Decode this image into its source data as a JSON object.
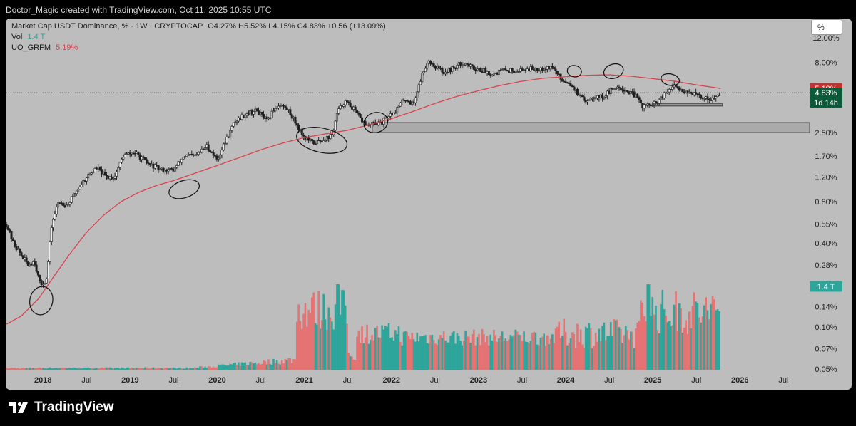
{
  "header": {
    "attribution": "Doctor_Magic created with TradingView.com, Oct 11, 2025 10:55 UTC"
  },
  "legend": {
    "title": "Market Cap USDT Dominance, % · 1W · CRYPTOCAP",
    "ohlc": "O4.27%  H5.52%  L4.15%  C4.83%  +0.56 (+13.09%)",
    "vol_label": "Vol",
    "vol_value": "1.4 T",
    "indicator_label": "UO_GRFM",
    "indicator_value": "5.19%"
  },
  "scale_button": "%",
  "badges": {
    "indicator": "5.19%",
    "price": "4.83%",
    "countdown": "1d 14h",
    "volume": "1.4 T"
  },
  "brand": {
    "name": "TradingView"
  },
  "colors": {
    "background": "#bdbdbd",
    "up": "#1f1f1f",
    "down": "#1f1f1f",
    "vol_up": "#2ea59a",
    "vol_down": "#e57373",
    "ma": "#d9434d",
    "badge_red": "#c53030",
    "badge_green": "#0b5a3a",
    "badge_teal": "#2ea59a"
  },
  "chart_data": {
    "type": "line",
    "title": "Market Cap USDT Dominance, % · 1W · CRYPTOCAP",
    "y_scale": "log",
    "yticks": [
      {
        "label": "12.00%",
        "value": 12.0
      },
      {
        "label": "8.00%",
        "value": 8.0
      },
      {
        "label": "2.50%",
        "value": 2.5
      },
      {
        "label": "1.70%",
        "value": 1.7
      },
      {
        "label": "1.20%",
        "value": 1.2
      },
      {
        "label": "0.80%",
        "value": 0.8
      },
      {
        "label": "0.55%",
        "value": 0.55
      },
      {
        "label": "0.40%",
        "value": 0.4
      },
      {
        "label": "0.28%",
        "value": 0.28
      },
      {
        "label": "0.14%",
        "value": 0.14
      },
      {
        "label": "0.10%",
        "value": 0.1
      },
      {
        "label": "0.07%",
        "value": 0.07
      },
      {
        "label": "0.05%",
        "value": 0.05
      }
    ],
    "xticks": [
      {
        "label": "2018",
        "t": 2018.0,
        "bold": true
      },
      {
        "label": "Jul",
        "t": 2018.5,
        "bold": false
      },
      {
        "label": "2019",
        "t": 2019.0,
        "bold": true
      },
      {
        "label": "Jul",
        "t": 2019.5,
        "bold": false
      },
      {
        "label": "2020",
        "t": 2020.0,
        "bold": true
      },
      {
        "label": "Jul",
        "t": 2020.5,
        "bold": false
      },
      {
        "label": "2021",
        "t": 2021.0,
        "bold": true
      },
      {
        "label": "Jul",
        "t": 2021.5,
        "bold": false
      },
      {
        "label": "2022",
        "t": 2022.0,
        "bold": true
      },
      {
        "label": "Jul",
        "t": 2022.5,
        "bold": false
      },
      {
        "label": "2023",
        "t": 2023.0,
        "bold": true
      },
      {
        "label": "Jul",
        "t": 2023.5,
        "bold": false
      },
      {
        "label": "2024",
        "t": 2024.0,
        "bold": true
      },
      {
        "label": "Jul",
        "t": 2024.5,
        "bold": false
      },
      {
        "label": "2025",
        "t": 2025.0,
        "bold": true
      },
      {
        "label": "Jul",
        "t": 2025.5,
        "bold": false
      },
      {
        "label": "2026",
        "t": 2026.0,
        "bold": true
      },
      {
        "label": "Jul",
        "t": 2026.5,
        "bold": false
      }
    ],
    "price_series": {
      "name": "USDT Dominance",
      "points": [
        [
          2017.58,
          0.55
        ],
        [
          2017.66,
          0.4
        ],
        [
          2017.75,
          0.33
        ],
        [
          2017.83,
          0.28
        ],
        [
          2017.9,
          0.3
        ],
        [
          2017.97,
          0.2
        ],
        [
          2018.04,
          0.22
        ],
        [
          2018.1,
          0.55
        ],
        [
          2018.18,
          0.8
        ],
        [
          2018.28,
          0.75
        ],
        [
          2018.38,
          0.95
        ],
        [
          2018.5,
          1.2
        ],
        [
          2018.62,
          1.4
        ],
        [
          2018.72,
          1.2
        ],
        [
          2018.82,
          1.2
        ],
        [
          2018.92,
          1.7
        ],
        [
          2019.05,
          1.8
        ],
        [
          2019.2,
          1.5
        ],
        [
          2019.35,
          1.35
        ],
        [
          2019.5,
          1.35
        ],
        [
          2019.62,
          1.7
        ],
        [
          2019.75,
          1.7
        ],
        [
          2019.88,
          2.0
        ],
        [
          2020.0,
          1.6
        ],
        [
          2020.1,
          2.2
        ],
        [
          2020.2,
          3.0
        ],
        [
          2020.32,
          3.4
        ],
        [
          2020.45,
          3.6
        ],
        [
          2020.58,
          3.0
        ],
        [
          2020.65,
          3.7
        ],
        [
          2020.72,
          4.0
        ],
        [
          2020.82,
          3.6
        ],
        [
          2020.92,
          2.8
        ],
        [
          2021.0,
          2.3
        ],
        [
          2021.1,
          2.1
        ],
        [
          2021.2,
          2.2
        ],
        [
          2021.32,
          2.4
        ],
        [
          2021.38,
          3.5
        ],
        [
          2021.46,
          4.2
        ],
        [
          2021.55,
          3.8
        ],
        [
          2021.65,
          3.1
        ],
        [
          2021.72,
          2.8
        ],
        [
          2021.8,
          2.9
        ],
        [
          2021.88,
          2.9
        ],
        [
          2021.96,
          3.3
        ],
        [
          2022.05,
          3.6
        ],
        [
          2022.15,
          4.4
        ],
        [
          2022.25,
          4.0
        ],
        [
          2022.35,
          6.5
        ],
        [
          2022.42,
          8.3
        ],
        [
          2022.5,
          7.5
        ],
        [
          2022.6,
          6.8
        ],
        [
          2022.7,
          7.2
        ],
        [
          2022.82,
          8.0
        ],
        [
          2022.92,
          7.4
        ],
        [
          2023.05,
          7.0
        ],
        [
          2023.15,
          6.6
        ],
        [
          2023.28,
          7.0
        ],
        [
          2023.45,
          7.0
        ],
        [
          2023.6,
          7.2
        ],
        [
          2023.75,
          7.3
        ],
        [
          2023.85,
          7.4
        ],
        [
          2023.95,
          6.0
        ],
        [
          2024.05,
          5.7
        ],
        [
          2024.15,
          4.6
        ],
        [
          2024.22,
          4.2
        ],
        [
          2024.32,
          4.6
        ],
        [
          2024.42,
          4.5
        ],
        [
          2024.52,
          5.0
        ],
        [
          2024.6,
          5.4
        ],
        [
          2024.7,
          5.0
        ],
        [
          2024.8,
          4.6
        ],
        [
          2024.88,
          3.9
        ],
        [
          2024.96,
          3.9
        ],
        [
          2025.05,
          4.1
        ],
        [
          2025.15,
          4.8
        ],
        [
          2025.25,
          5.4
        ],
        [
          2025.35,
          5.0
        ],
        [
          2025.45,
          4.8
        ],
        [
          2025.55,
          4.5
        ],
        [
          2025.65,
          4.4
        ],
        [
          2025.72,
          4.4
        ],
        [
          2025.78,
          4.83
        ]
      ]
    },
    "ma_series": {
      "name": "UO_GRFM",
      "points": [
        [
          2017.58,
          0.105
        ],
        [
          2017.75,
          0.12
        ],
        [
          2017.95,
          0.16
        ],
        [
          2018.1,
          0.22
        ],
        [
          2018.3,
          0.33
        ],
        [
          2018.5,
          0.48
        ],
        [
          2018.7,
          0.64
        ],
        [
          2018.9,
          0.8
        ],
        [
          2019.1,
          0.93
        ],
        [
          2019.3,
          1.04
        ],
        [
          2019.5,
          1.13
        ],
        [
          2019.75,
          1.28
        ],
        [
          2020.0,
          1.45
        ],
        [
          2020.25,
          1.65
        ],
        [
          2020.5,
          1.88
        ],
        [
          2020.75,
          2.1
        ],
        [
          2021.0,
          2.3
        ],
        [
          2021.25,
          2.45
        ],
        [
          2021.5,
          2.6
        ],
        [
          2021.75,
          2.85
        ],
        [
          2022.0,
          3.15
        ],
        [
          2022.25,
          3.55
        ],
        [
          2022.5,
          4.05
        ],
        [
          2022.75,
          4.55
        ],
        [
          2023.0,
          5.0
        ],
        [
          2023.25,
          5.45
        ],
        [
          2023.5,
          5.85
        ],
        [
          2023.75,
          6.15
        ],
        [
          2024.0,
          6.3
        ],
        [
          2024.25,
          6.45
        ],
        [
          2024.5,
          6.5
        ],
        [
          2024.75,
          6.35
        ],
        [
          2025.0,
          6.1
        ],
        [
          2025.25,
          5.85
        ],
        [
          2025.5,
          5.5
        ],
        [
          2025.78,
          5.19
        ]
      ]
    },
    "volume": {
      "name": "Vol",
      "last": "1.4 T"
    },
    "annotations": {
      "support_zone": {
        "t_start": 2021.78,
        "t_end": 2026.8,
        "y_top": 2.95,
        "y_bottom": 2.5
      },
      "range_line": {
        "t_start": 2025.0,
        "t_end": 2025.8,
        "y": 3.95
      },
      "circles": [
        {
          "t": 2017.98,
          "y": 0.155
        },
        {
          "t": 2019.62,
          "y": 0.98
        },
        {
          "t": 2021.2,
          "y": 2.2
        },
        {
          "t": 2021.82,
          "y": 2.95
        },
        {
          "t": 2024.1,
          "y": 6.9
        },
        {
          "t": 2024.55,
          "y": 6.9
        },
        {
          "t": 2025.2,
          "y": 6.0
        }
      ]
    }
  }
}
